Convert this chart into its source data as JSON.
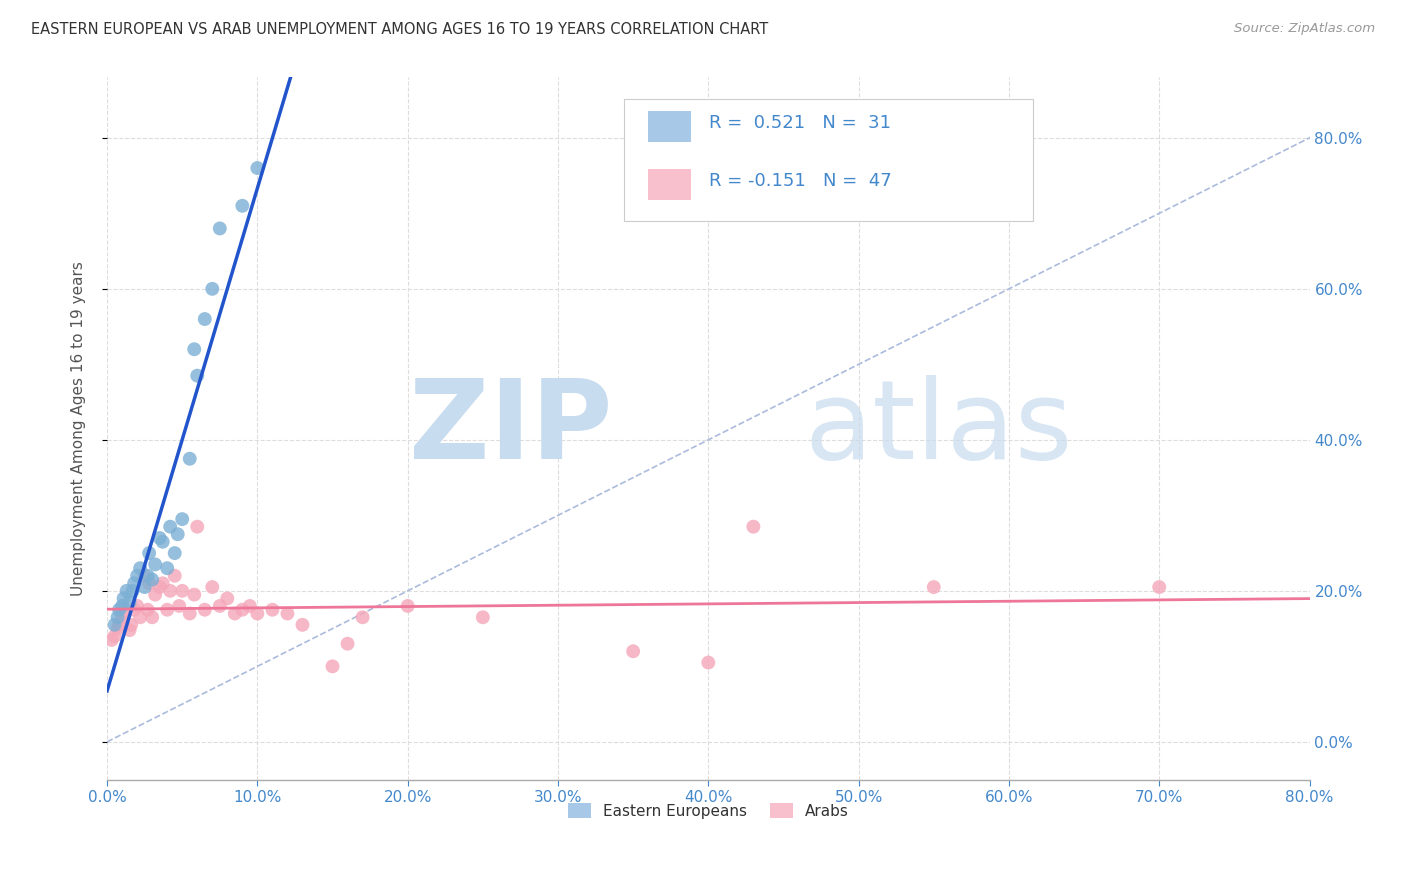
{
  "title": "EASTERN EUROPEAN VS ARAB UNEMPLOYMENT AMONG AGES 16 TO 19 YEARS CORRELATION CHART",
  "source": "Source: ZipAtlas.com",
  "ylabel": "Unemployment Among Ages 16 to 19 years",
  "xlim": [
    0.0,
    0.8
  ],
  "ylim": [
    -0.05,
    0.88
  ],
  "xtick_vals": [
    0.0,
    0.1,
    0.2,
    0.3,
    0.4,
    0.5,
    0.6,
    0.7,
    0.8
  ],
  "ytick_vals": [
    0.0,
    0.2,
    0.4,
    0.6,
    0.8
  ],
  "blue_R": 0.521,
  "blue_N": 31,
  "pink_R": -0.151,
  "pink_N": 47,
  "blue_dot_color": "#7BAFD4",
  "pink_dot_color": "#F4A7B9",
  "blue_legend_color": "#A8C8E8",
  "pink_legend_color": "#F8C0CC",
  "trend_blue_color": "#2255CC",
  "trend_pink_color": "#EE7799",
  "diag_color": "#AABBDD",
  "legend_text_color": "#4488CC",
  "rvalue_color": "#4488CC",
  "nvalue_color": "#4488CC",
  "background_color": "#FFFFFF",
  "blue_x": [
    0.005,
    0.007,
    0.008,
    0.01,
    0.011,
    0.013,
    0.015,
    0.017,
    0.018,
    0.02,
    0.022,
    0.025,
    0.027,
    0.028,
    0.03,
    0.032,
    0.035,
    0.037,
    0.04,
    0.042,
    0.045,
    0.047,
    0.05,
    0.055,
    0.058,
    0.06,
    0.065,
    0.07,
    0.075,
    0.09,
    0.1
  ],
  "blue_y": [
    0.155,
    0.165,
    0.175,
    0.18,
    0.19,
    0.2,
    0.185,
    0.2,
    0.21,
    0.22,
    0.23,
    0.205,
    0.22,
    0.25,
    0.215,
    0.235,
    0.27,
    0.265,
    0.23,
    0.285,
    0.25,
    0.275,
    0.295,
    0.375,
    0.52,
    0.485,
    0.56,
    0.6,
    0.68,
    0.71,
    0.76
  ],
  "pink_x": [
    0.003,
    0.005,
    0.007,
    0.008,
    0.01,
    0.012,
    0.015,
    0.016,
    0.018,
    0.02,
    0.022,
    0.025,
    0.027,
    0.028,
    0.03,
    0.032,
    0.035,
    0.037,
    0.04,
    0.042,
    0.045,
    0.048,
    0.05,
    0.055,
    0.058,
    0.06,
    0.065,
    0.07,
    0.075,
    0.08,
    0.085,
    0.09,
    0.095,
    0.1,
    0.11,
    0.12,
    0.13,
    0.15,
    0.16,
    0.17,
    0.2,
    0.25,
    0.35,
    0.4,
    0.43,
    0.55,
    0.7
  ],
  "pink_y": [
    0.135,
    0.14,
    0.15,
    0.155,
    0.165,
    0.17,
    0.148,
    0.155,
    0.175,
    0.18,
    0.165,
    0.22,
    0.175,
    0.21,
    0.165,
    0.195,
    0.205,
    0.21,
    0.175,
    0.2,
    0.22,
    0.18,
    0.2,
    0.17,
    0.195,
    0.285,
    0.175,
    0.205,
    0.18,
    0.19,
    0.17,
    0.175,
    0.18,
    0.17,
    0.175,
    0.17,
    0.155,
    0.1,
    0.13,
    0.165,
    0.18,
    0.165,
    0.12,
    0.105,
    0.285,
    0.205,
    0.205
  ]
}
